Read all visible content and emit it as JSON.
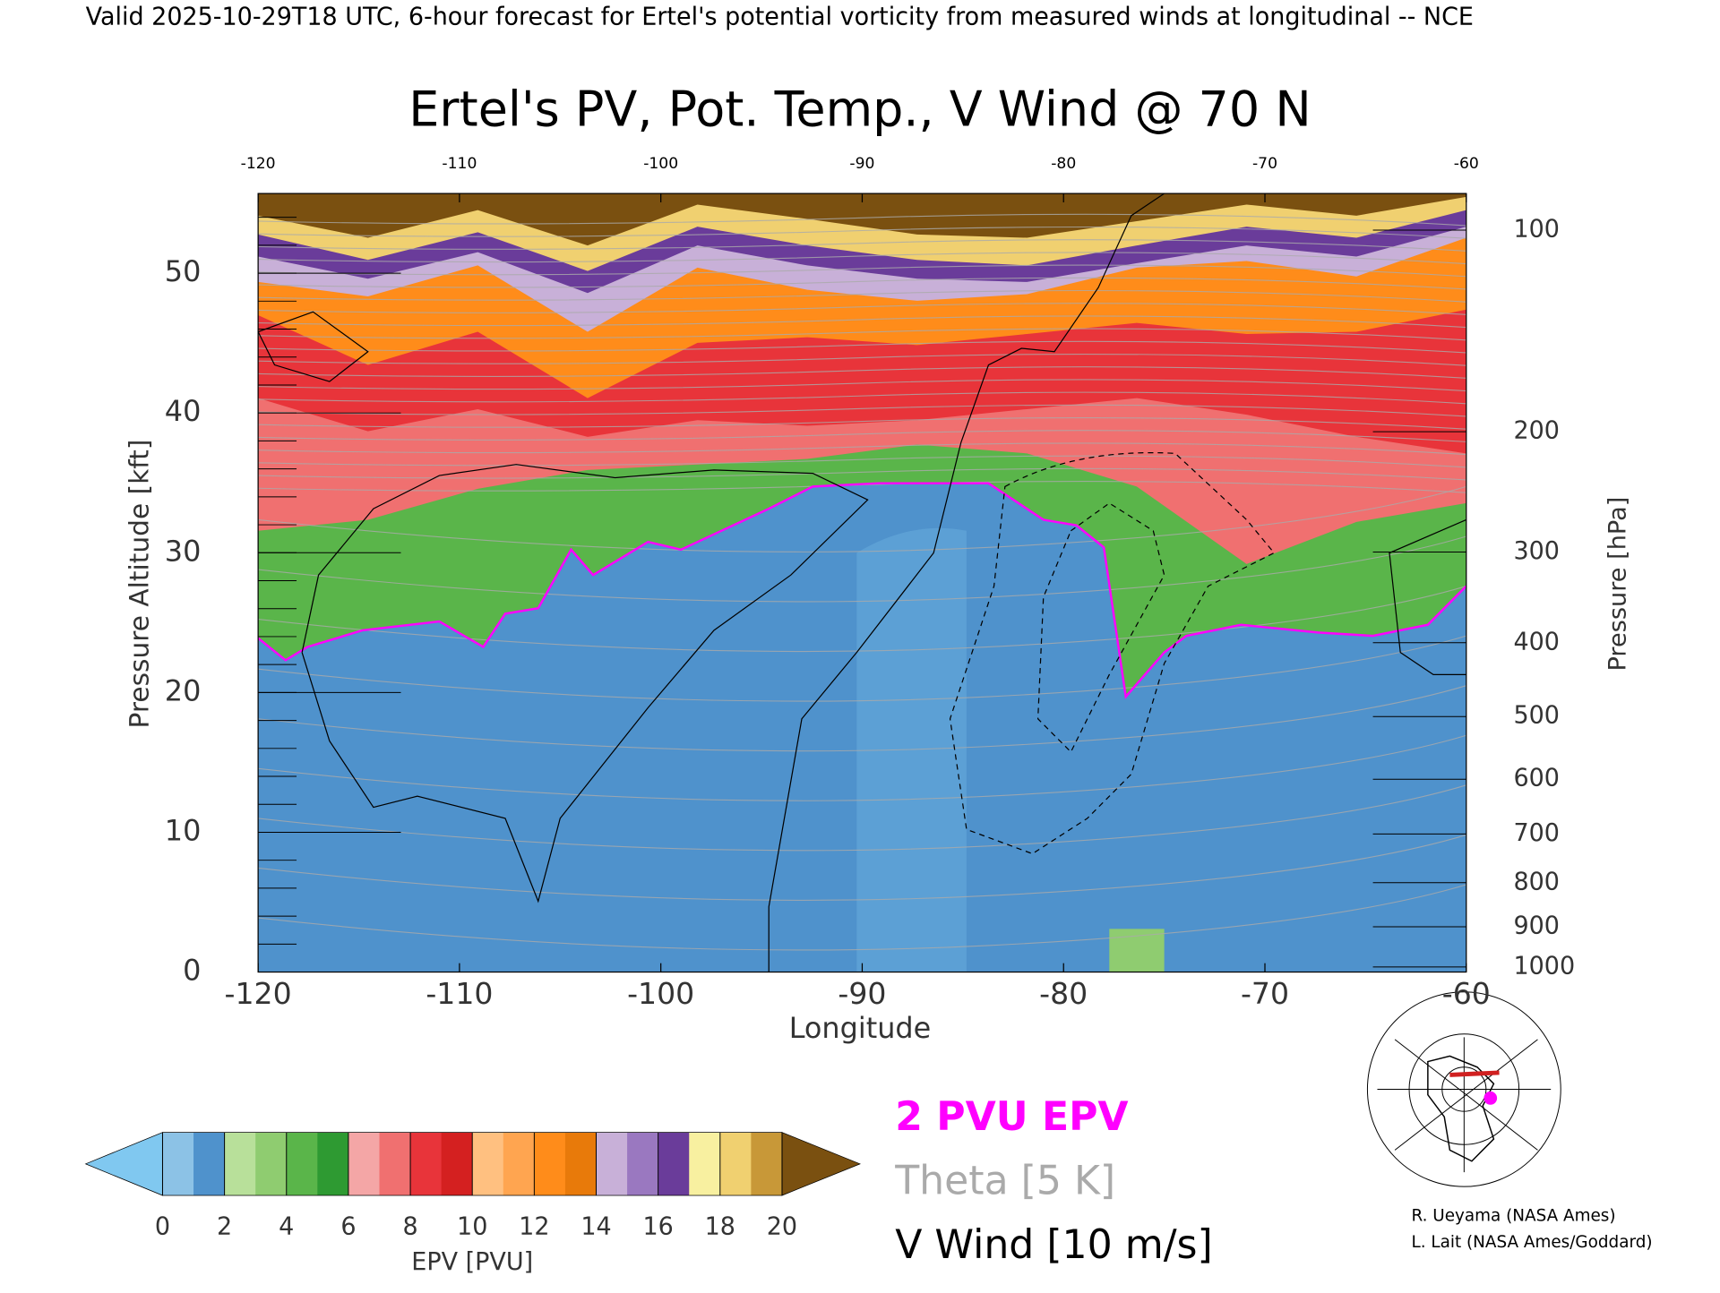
{
  "header": "Valid 2025-10-29T18 UTC, 6-hour forecast for Ertel's potential vorticity from measured winds at longitudinal -- NCE",
  "chart_data": {
    "type": "contour",
    "title": "Ertel's PV, Pot. Temp., V Wind @ 70 N",
    "x_label": "Longitude",
    "y_label": "Pressure Altitude [kft]",
    "y2_label": "Pressure [hPa]",
    "xlim": [
      -120,
      -60
    ],
    "xticks": [
      -120,
      -110,
      -100,
      -90,
      -80,
      -70,
      -60
    ],
    "ylim": [
      0,
      55.7
    ],
    "yticks": [
      0,
      10,
      20,
      30,
      40,
      50
    ],
    "y2lim": [
      1013.25,
      88.2
    ],
    "y2scale": "standard-atmosphere",
    "y2ticks": [
      100,
      200,
      300,
      400,
      500,
      600,
      700,
      800,
      900,
      1000
    ],
    "colorbar": {
      "label": "EPV [PVU]",
      "ticks": [
        0,
        2,
        4,
        6,
        8,
        10,
        12,
        14,
        16,
        18,
        20
      ],
      "colors": [
        "#8cc2e6",
        "#4f92cc",
        "#b8e09a",
        "#8fcc70",
        "#5ab54a",
        "#2e9a32",
        "#f4a6a6",
        "#f07070",
        "#e8343a",
        "#d42020",
        "#ffc080",
        "#ffa550",
        "#ff8c1a",
        "#e87a0a",
        "#c8b0d8",
        "#9a78c0",
        "#6a3c9a",
        "#f8f0a0",
        "#f0d070",
        "#c89838"
      ],
      "under_color": "#80c8f0",
      "over_color": "#7a5010"
    },
    "legend": [
      {
        "name": "2 PVU EPV",
        "color": "#ff00ff"
      },
      {
        "name": "Theta [5 K]",
        "color": "#aaaaaa"
      },
      {
        "name": "V Wind [10 m/s]",
        "color": "#000000"
      }
    ]
  },
  "credits": [
    "R. Ueyama (NASA Ames)",
    "L. Lait (NASA Ames/Goddard)"
  ]
}
